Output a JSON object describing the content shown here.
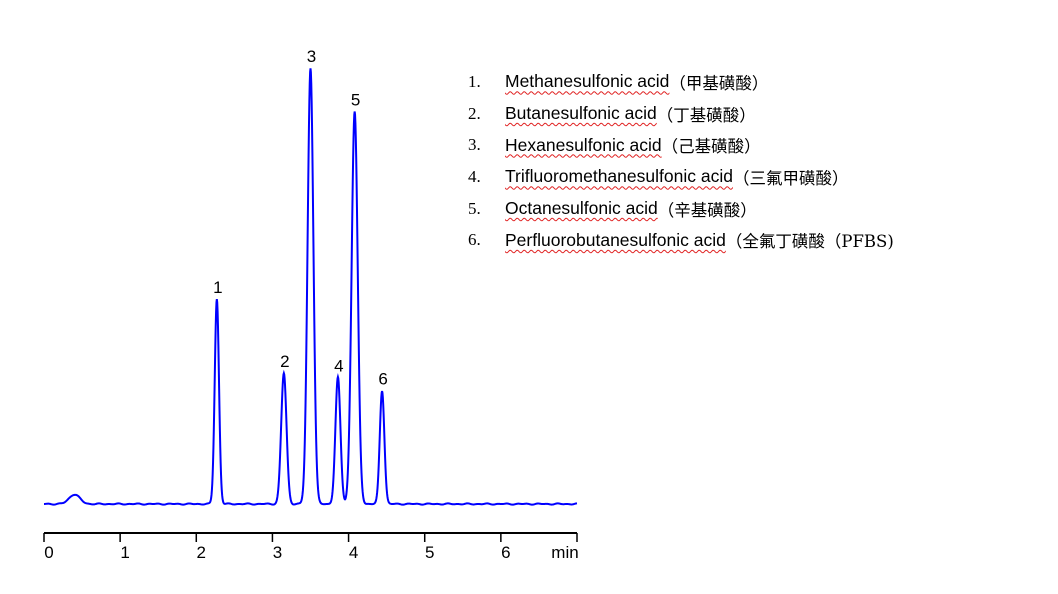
{
  "chart_data": {
    "type": "line",
    "title": "",
    "xlabel": "min",
    "ylabel": "",
    "xlim": [
      0,
      7
    ],
    "x_ticks": [
      "0",
      "1",
      "2",
      "3",
      "4",
      "5",
      "6"
    ],
    "x_unit_label": "min",
    "grid": false,
    "y_axis_shown": false,
    "line_color": "#0000ff",
    "baseline_bumps": [
      {
        "time": 0.4,
        "height": 2.2,
        "width": 0.07
      }
    ],
    "peaks": [
      {
        "label": "1",
        "time": 2.27,
        "height": 47,
        "width": 0.028
      },
      {
        "label": "2",
        "time": 3.15,
        "height": 30,
        "width": 0.035
      },
      {
        "label": "3",
        "time": 3.5,
        "height": 100,
        "width": 0.038
      },
      {
        "label": "4",
        "time": 3.86,
        "height": 29,
        "width": 0.033
      },
      {
        "label": "5",
        "time": 4.08,
        "height": 90,
        "width": 0.04
      },
      {
        "label": "6",
        "time": 4.44,
        "height": 26,
        "width": 0.03
      }
    ],
    "legend_placement": "top-right",
    "legend": [
      {
        "num": "1.",
        "name": "Methanesulfonic acid",
        "cn": " （甲基磺酸）"
      },
      {
        "num": "2.",
        "name": "Butanesulfonic acid",
        "cn": " （丁基磺酸）"
      },
      {
        "num": "3.",
        "name": "Hexanesulfonic acid",
        "cn": " （己基磺酸）"
      },
      {
        "num": "4.",
        "name": "Trifluoromethanesulfonic acid",
        "cn": "（三氟甲磺酸）"
      },
      {
        "num": "5.",
        "name": "Octanesulfonic acid",
        "cn": "（辛基磺酸）"
      },
      {
        "num": "6.",
        "name": "Perfluorobutanesulfonic acid",
        "cn": "（全氟丁磺酸（PFBS)"
      }
    ]
  }
}
